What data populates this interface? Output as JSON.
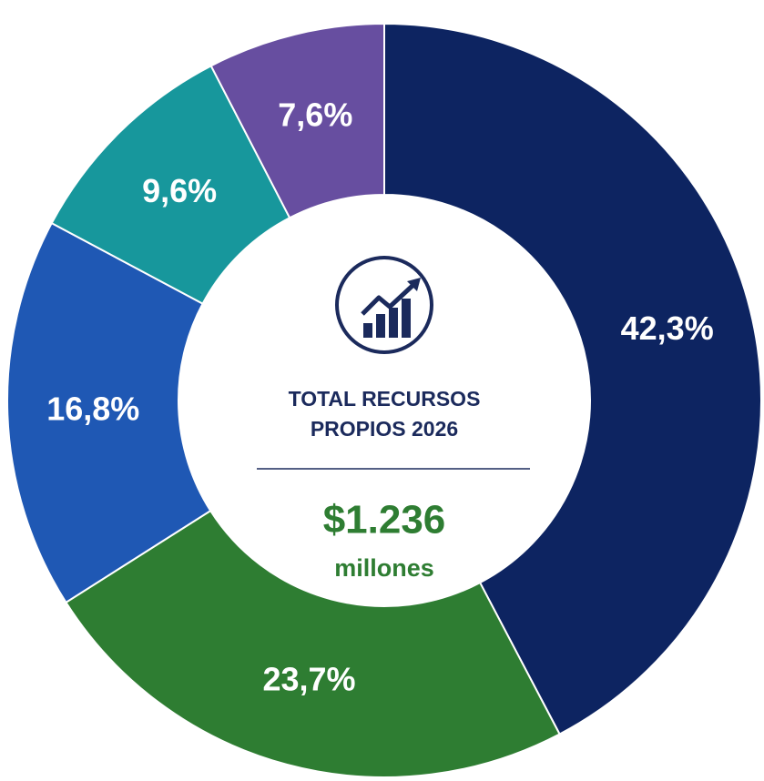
{
  "chart_data": {
    "type": "donut",
    "categories": [
      null,
      null,
      null,
      null,
      null
    ],
    "values": [
      42.3,
      23.7,
      16.8,
      9.6,
      7.6
    ],
    "value_labels": [
      "42,3%",
      "23,7%",
      "16,8%",
      "9,6%",
      "7,6%"
    ],
    "colors": [
      "#0d2461",
      "#2e7d32",
      "#1f58b4",
      "#17979c",
      "#674ea0"
    ],
    "center_title": [
      "TOTAL RECURSOS",
      "PROPIOS 2026"
    ],
    "center_value": "$1.236",
    "center_unit": "millones"
  }
}
